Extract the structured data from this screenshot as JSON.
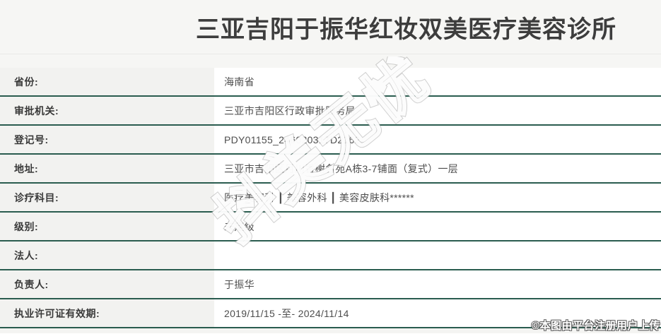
{
  "header": {
    "title": "三亚吉阳于振华红妆双美医疗美容诊所"
  },
  "table": {
    "rows": [
      {
        "label": "省份:",
        "value": "海南省"
      },
      {
        "label": "审批机关:",
        "value": "三亚市吉阳区行政审批服务局"
      },
      {
        "label": "登记号:",
        "value": "PDY01155_246020317D2162"
      },
      {
        "label": "地址:",
        "value": "三亚市吉阳区月川香榭名苑A栋3-7铺面（复式）一层"
      },
      {
        "label": "诊疗科目:",
        "value": "医疗美容科 ┃ 美容外科 ┃ 美容皮肤科******"
      },
      {
        "label": "级别:",
        "value": "未定级"
      },
      {
        "label": "法人:",
        "value": ""
      },
      {
        "label": "负责人:",
        "value": "于振华"
      },
      {
        "label": "执业许可证有效期:",
        "value": "2019/11/15 -至- 2024/11/14"
      }
    ]
  },
  "watermark": {
    "text": "抖美无忧"
  },
  "footer": {
    "credit": "©本图由平台注册用户上传"
  },
  "colors": {
    "divider_green": "#2a5c4f",
    "label_bg": "#f2f2f0",
    "header_bg": "#f6f6f4",
    "title_text": "#3d3d3d",
    "value_text": "#4e4e4e"
  }
}
